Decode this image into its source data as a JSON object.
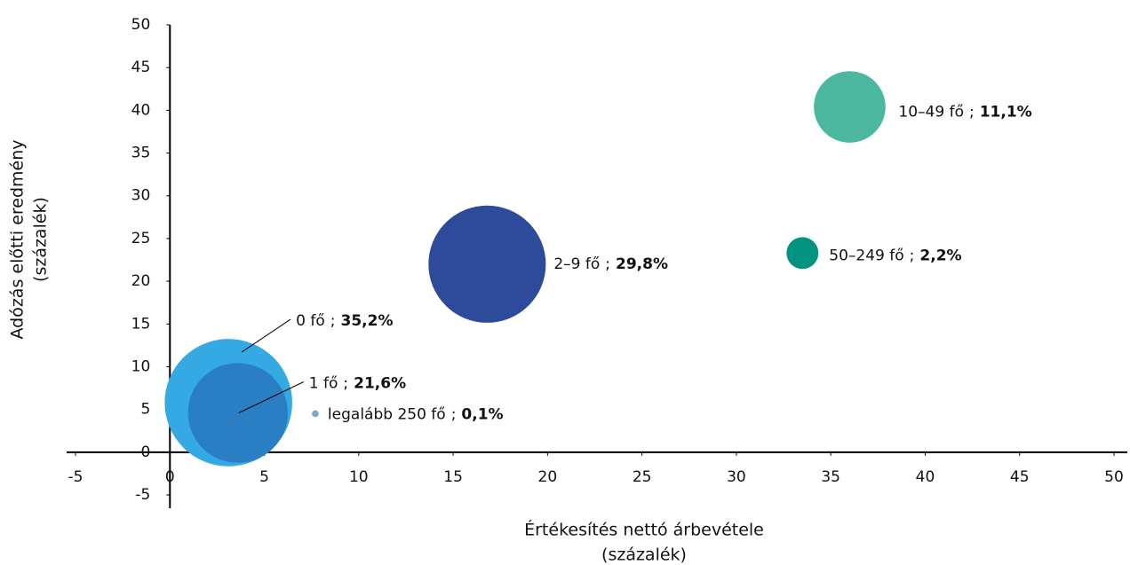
{
  "chart_data": {
    "type": "bubble",
    "xlabel": [
      "Értékesítés nettó árbevétele",
      "(százalék)"
    ],
    "ylabel": [
      "Adózás előtti eredmény",
      "(százalék)"
    ],
    "label_separator": ";",
    "xlim": [
      -5,
      50
    ],
    "xticks": [
      -5,
      0,
      5,
      10,
      15,
      20,
      25,
      30,
      35,
      40,
      45,
      50
    ],
    "ylim": [
      -5,
      50
    ],
    "yticks": [
      -5,
      0,
      5,
      10,
      15,
      20,
      25,
      30,
      35,
      40,
      45,
      50
    ],
    "grid": false,
    "series": [
      {
        "name": "0 fő",
        "color": "#35a9e1",
        "x": [
          3.1
        ],
        "values": [
          5.8
        ],
        "sizes": [
          35.2
        ],
        "value_labels": [
          "35,2%"
        ]
      },
      {
        "name": "1 fő",
        "color": "#2a7fc4",
        "x": [
          3.6
        ],
        "values": [
          4.6
        ],
        "sizes": [
          21.6
        ],
        "value_labels": [
          "21,6%"
        ]
      },
      {
        "name": "2–9 fő",
        "color": "#2e4a9a",
        "x": [
          16.8
        ],
        "values": [
          22.0
        ],
        "sizes": [
          29.8
        ],
        "value_labels": [
          "29,8%"
        ]
      },
      {
        "name": "10–49 fő",
        "color": "#4bb89f",
        "x": [
          36.0
        ],
        "values": [
          40.4
        ],
        "sizes": [
          11.1
        ],
        "value_labels": [
          "11,1%"
        ]
      },
      {
        "name": "50–249 fő",
        "color": "#009480",
        "x": [
          33.5
        ],
        "values": [
          23.3
        ],
        "sizes": [
          2.2
        ],
        "value_labels": [
          "2,2%"
        ]
      },
      {
        "name": "legalább 250 fő",
        "color": "#7da7c9",
        "x": [
          7.7
        ],
        "values": [
          4.5
        ],
        "sizes": [
          0.1
        ],
        "value_labels": [
          "0,1%"
        ]
      }
    ]
  }
}
